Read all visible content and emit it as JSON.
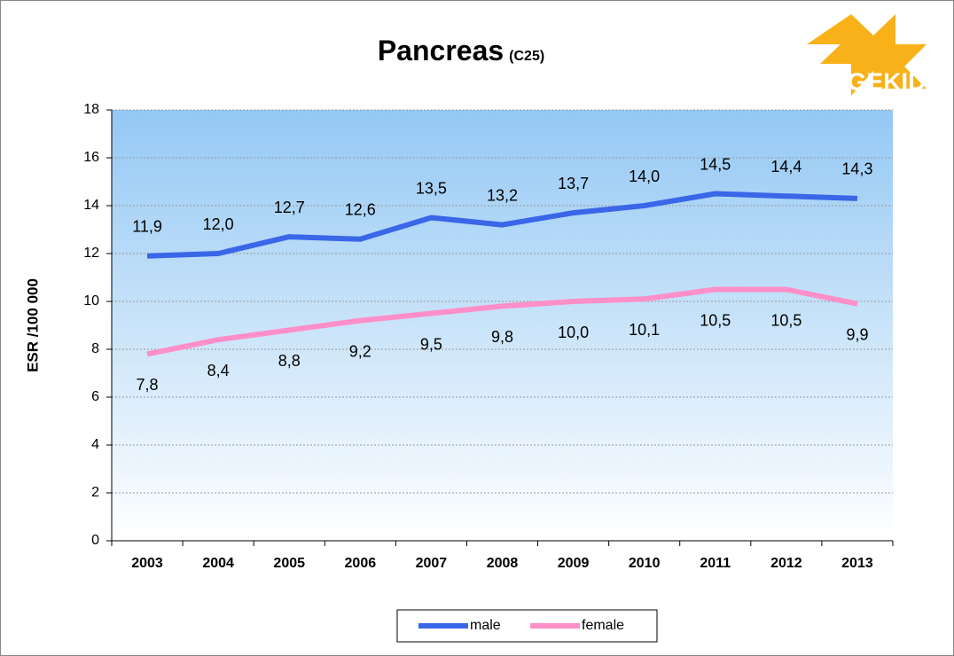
{
  "chart_data": {
    "type": "line",
    "title": "Pancreas",
    "subtitle": "(C25)",
    "logo": "GEKID",
    "y_label": "ESR /100 000",
    "categories": [
      "2003",
      "2004",
      "2005",
      "2006",
      "2007",
      "2008",
      "2009",
      "2010",
      "2011",
      "2012",
      "2013"
    ],
    "series": [
      {
        "name": "male",
        "color": "#3a66e8",
        "values": [
          11.9,
          12.0,
          12.7,
          12.6,
          13.5,
          13.2,
          13.7,
          14.0,
          14.5,
          14.4,
          14.3
        ],
        "value_labels": [
          "11,9",
          "12,0",
          "12,7",
          "12,6",
          "13,5",
          "13,2",
          "13,7",
          "14,0",
          "14,5",
          "14,4",
          "14,3"
        ]
      },
      {
        "name": "female",
        "color": "#ff8fc8",
        "values": [
          7.8,
          8.4,
          8.8,
          9.2,
          9.5,
          9.8,
          10.0,
          10.1,
          10.5,
          10.5,
          9.9
        ],
        "value_labels": [
          "7,8",
          "8,4",
          "8,8",
          "9,2",
          "9,5",
          "9,8",
          "10,0",
          "10,1",
          "10,5",
          "10,5",
          "9,9"
        ]
      }
    ],
    "ylim": [
      0,
      18
    ],
    "yticks": [
      0,
      2,
      4,
      6,
      8,
      10,
      12,
      14,
      16,
      18
    ],
    "grid": true,
    "legend": "bottom"
  }
}
